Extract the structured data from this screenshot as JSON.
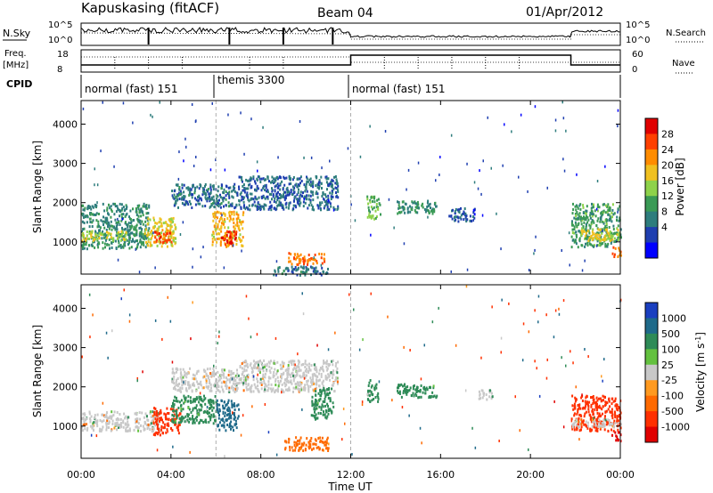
{
  "header": {
    "station": "Kapuskasing (fitACF)",
    "beam": "Beam 04",
    "date": "01/Apr/2012"
  },
  "top_panels": {
    "left_labels": [
      "N.Sky",
      "Freq.",
      "[MHz]",
      "CPID"
    ],
    "right_labels": [
      "N.Search",
      "Nave"
    ],
    "noise_ticks_left": [
      "10^5",
      "10^0"
    ],
    "noise_ticks_right": [
      "10^5",
      "10^0"
    ],
    "freq_ticks": [
      "18",
      "8"
    ],
    "nave_ticks": [
      "60",
      "0"
    ],
    "cpid_segments": [
      {
        "label": "normal (fast) 151",
        "start": 0,
        "end": 6
      },
      {
        "label": "themis 3300",
        "start": 6,
        "end": 12
      },
      {
        "label": "normal (fast) 151",
        "start": 12,
        "end": 24
      }
    ]
  },
  "power_panel": {
    "ylabel": "Slant Range [km]",
    "colorbar_label": "Power [dB]",
    "colorbar_ticks": [
      "28",
      "24",
      "20",
      "16",
      "12",
      "8",
      "4"
    ],
    "colors": [
      "#0000ff",
      "#1f3fb0",
      "#2e7d7d",
      "#3a9a55",
      "#8ed24a",
      "#f0c020",
      "#ff8c00",
      "#ff4000",
      "#e00000"
    ]
  },
  "velocity_panel": {
    "ylabel": "Slant Range [km]",
    "colorbar_label": "Velocity [m s",
    "colorbar_unit_exp": "-1",
    "colorbar_unit_close": "]",
    "colorbar_ticks": [
      "1000",
      "500",
      "100",
      "25",
      "-25",
      "-100",
      "-500",
      "-1000"
    ],
    "colors": [
      "#1a3fc0",
      "#1f6a8a",
      "#2e8b57",
      "#63c13f",
      "#c8c8c8",
      "#ff9a20",
      "#ff6a00",
      "#ff3000",
      "#e00000"
    ]
  },
  "chart_data": {
    "type": "heatmap",
    "xlabel": "Time UT",
    "ylabel": "Slant Range [km]",
    "x_range_hours": [
      0,
      24
    ],
    "x_ticks": [
      "00:00",
      "04:00",
      "08:00",
      "12:00",
      "16:00",
      "20:00",
      "00:00"
    ],
    "y_ticks": [
      1000,
      2000,
      3000,
      4000
    ],
    "y_range_km": [
      180,
      4600
    ],
    "vertical_markers_hours": [
      6,
      12
    ],
    "power_regions": [
      {
        "t": [
          0,
          3.0
        ],
        "r": [
          850,
          2000
        ],
        "db": 10
      },
      {
        "t": [
          0,
          2.0
        ],
        "r": [
          1050,
          1300
        ],
        "db": 17
      },
      {
        "t": [
          2.8,
          4.2
        ],
        "r": [
          900,
          1650
        ],
        "db": 18
      },
      {
        "t": [
          3.2,
          4.0
        ],
        "r": [
          1000,
          1350
        ],
        "db": 26
      },
      {
        "t": [
          4.0,
          7.0
        ],
        "r": [
          1900,
          2500
        ],
        "db": 8
      },
      {
        "t": [
          5.8,
          7.2
        ],
        "r": [
          900,
          1800
        ],
        "db": 20
      },
      {
        "t": [
          6.2,
          6.9
        ],
        "r": [
          950,
          1300
        ],
        "db": 28
      },
      {
        "t": [
          7.0,
          11.4
        ],
        "r": [
          1850,
          2700
        ],
        "db": 7
      },
      {
        "t": [
          8.5,
          11.0
        ],
        "r": [
          180,
          400
        ],
        "db": 8
      },
      {
        "t": [
          9.2,
          10.8
        ],
        "r": [
          450,
          750
        ],
        "db": 24
      },
      {
        "t": [
          12.7,
          13.3
        ],
        "r": [
          1600,
          2200
        ],
        "db": 14
      },
      {
        "t": [
          14.0,
          15.8
        ],
        "r": [
          1750,
          2100
        ],
        "db": 10
      },
      {
        "t": [
          16.3,
          17.5
        ],
        "r": [
          1550,
          1900
        ],
        "db": 6
      },
      {
        "t": [
          21.8,
          24.0
        ],
        "r": [
          900,
          2000
        ],
        "db": 12
      },
      {
        "t": [
          22.2,
          24.0
        ],
        "r": [
          1050,
          1350
        ],
        "db": 18
      },
      {
        "t": [
          23.6,
          24.0
        ],
        "r": [
          650,
          900
        ],
        "db": 24
      }
    ],
    "velocity_regions": [
      {
        "t": [
          0,
          3.5
        ],
        "r": [
          900,
          1400
        ],
        "v": 0
      },
      {
        "t": [
          3.2,
          4.4
        ],
        "r": [
          800,
          1500
        ],
        "v": -500
      },
      {
        "t": [
          4.0,
          6.0
        ],
        "r": [
          1100,
          1800
        ],
        "v": 100
      },
      {
        "t": [
          4.0,
          7.0
        ],
        "r": [
          1900,
          2500
        ],
        "v": 0
      },
      {
        "t": [
          6.0,
          7.0
        ],
        "r": [
          900,
          1700
        ],
        "v": 500
      },
      {
        "t": [
          7.0,
          11.4
        ],
        "r": [
          1900,
          2700
        ],
        "v": 0
      },
      {
        "t": [
          10.2,
          11.2
        ],
        "r": [
          1200,
          2000
        ],
        "v": 100
      },
      {
        "t": [
          9.0,
          11.0
        ],
        "r": [
          400,
          750
        ],
        "v": -100
      },
      {
        "t": [
          12.7,
          13.2
        ],
        "r": [
          1650,
          2200
        ],
        "v": 100
      },
      {
        "t": [
          14.0,
          15.8
        ],
        "r": [
          1750,
          2100
        ],
        "v": 100
      },
      {
        "t": [
          17.6,
          18.3
        ],
        "r": [
          1700,
          1950
        ],
        "v": 0
      },
      {
        "t": [
          21.8,
          24.0
        ],
        "r": [
          900,
          1800
        ],
        "v": -500
      },
      {
        "t": [
          21.8,
          24.0
        ],
        "r": [
          1000,
          1200
        ],
        "v": 0
      },
      {
        "t": [
          23.6,
          24.0
        ],
        "r": [
          650,
          900
        ],
        "v": -1000
      }
    ]
  }
}
